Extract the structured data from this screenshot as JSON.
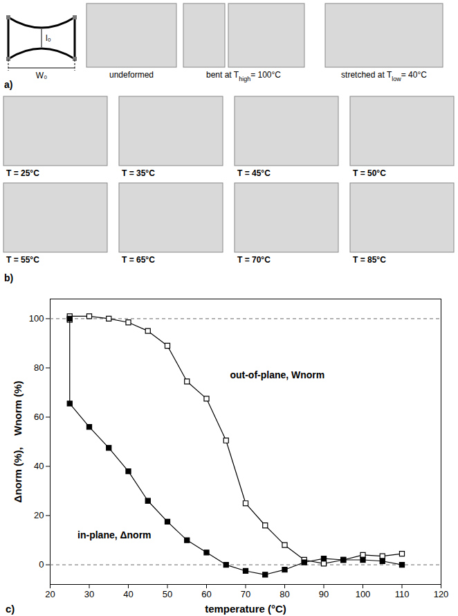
{
  "panel_a": {
    "label": "a)",
    "schematic": {
      "width_label": "W₀",
      "height_label": "l₀"
    },
    "captions": [
      {
        "text": "undeformed"
      },
      {
        "text": "bent at ",
        "var": "T",
        "sub": "high",
        "after": "= 100°C"
      },
      {
        "text": "stretched at ",
        "var": "T",
        "sub": "low",
        "after": "= 40°C"
      }
    ]
  },
  "panel_b": {
    "label": "b)",
    "captions": [
      "T = 25°C",
      "T = 35°C",
      "T = 45°C",
      "T = 50°C",
      "T = 55°C",
      "T = 65°C",
      "T = 70°C",
      "T = 85°C"
    ]
  },
  "chart_data": {
    "type": "line",
    "label": "c)",
    "x_label": "temperature (°C)",
    "y_label": "Δnorm (%),    Wnorm (%)",
    "x": [
      25,
      25,
      30,
      35,
      40,
      45,
      50,
      55,
      60,
      65,
      70,
      75,
      80,
      85,
      90,
      95,
      100,
      105,
      110
    ],
    "series": [
      {
        "name": "out-of-plane, Wnorm",
        "color": "#000000",
        "marker": "square-open",
        "values": [
          99.5,
          101,
          101,
          100,
          98.5,
          95,
          89,
          74.5,
          67.5,
          50.5,
          25,
          16,
          8,
          2,
          0.5,
          2,
          4,
          3.5,
          4.5
        ]
      },
      {
        "name": "in-plane, Δnorm",
        "color": "#000000",
        "marker": "square",
        "values": [
          100,
          65.5,
          56,
          47.5,
          38,
          26,
          17.5,
          10,
          5,
          0,
          -2.5,
          -4,
          -2,
          1,
          2.5,
          2,
          2,
          1.5,
          0
        ]
      }
    ],
    "annotations": [
      {
        "text": "out-of-plane, Wnorm",
        "x": 66,
        "y": 77
      },
      {
        "text": "in-plane, Δnorm",
        "x": 27,
        "y": 12
      }
    ],
    "hlines": [
      0,
      100
    ],
    "xlim": [
      20,
      120
    ],
    "xticks": [
      20,
      30,
      40,
      50,
      60,
      70,
      80,
      90,
      100,
      110,
      120
    ],
    "ylim": [
      -8,
      108
    ],
    "yticks": [
      0,
      20,
      40,
      60,
      80,
      100
    ],
    "grid": false
  }
}
